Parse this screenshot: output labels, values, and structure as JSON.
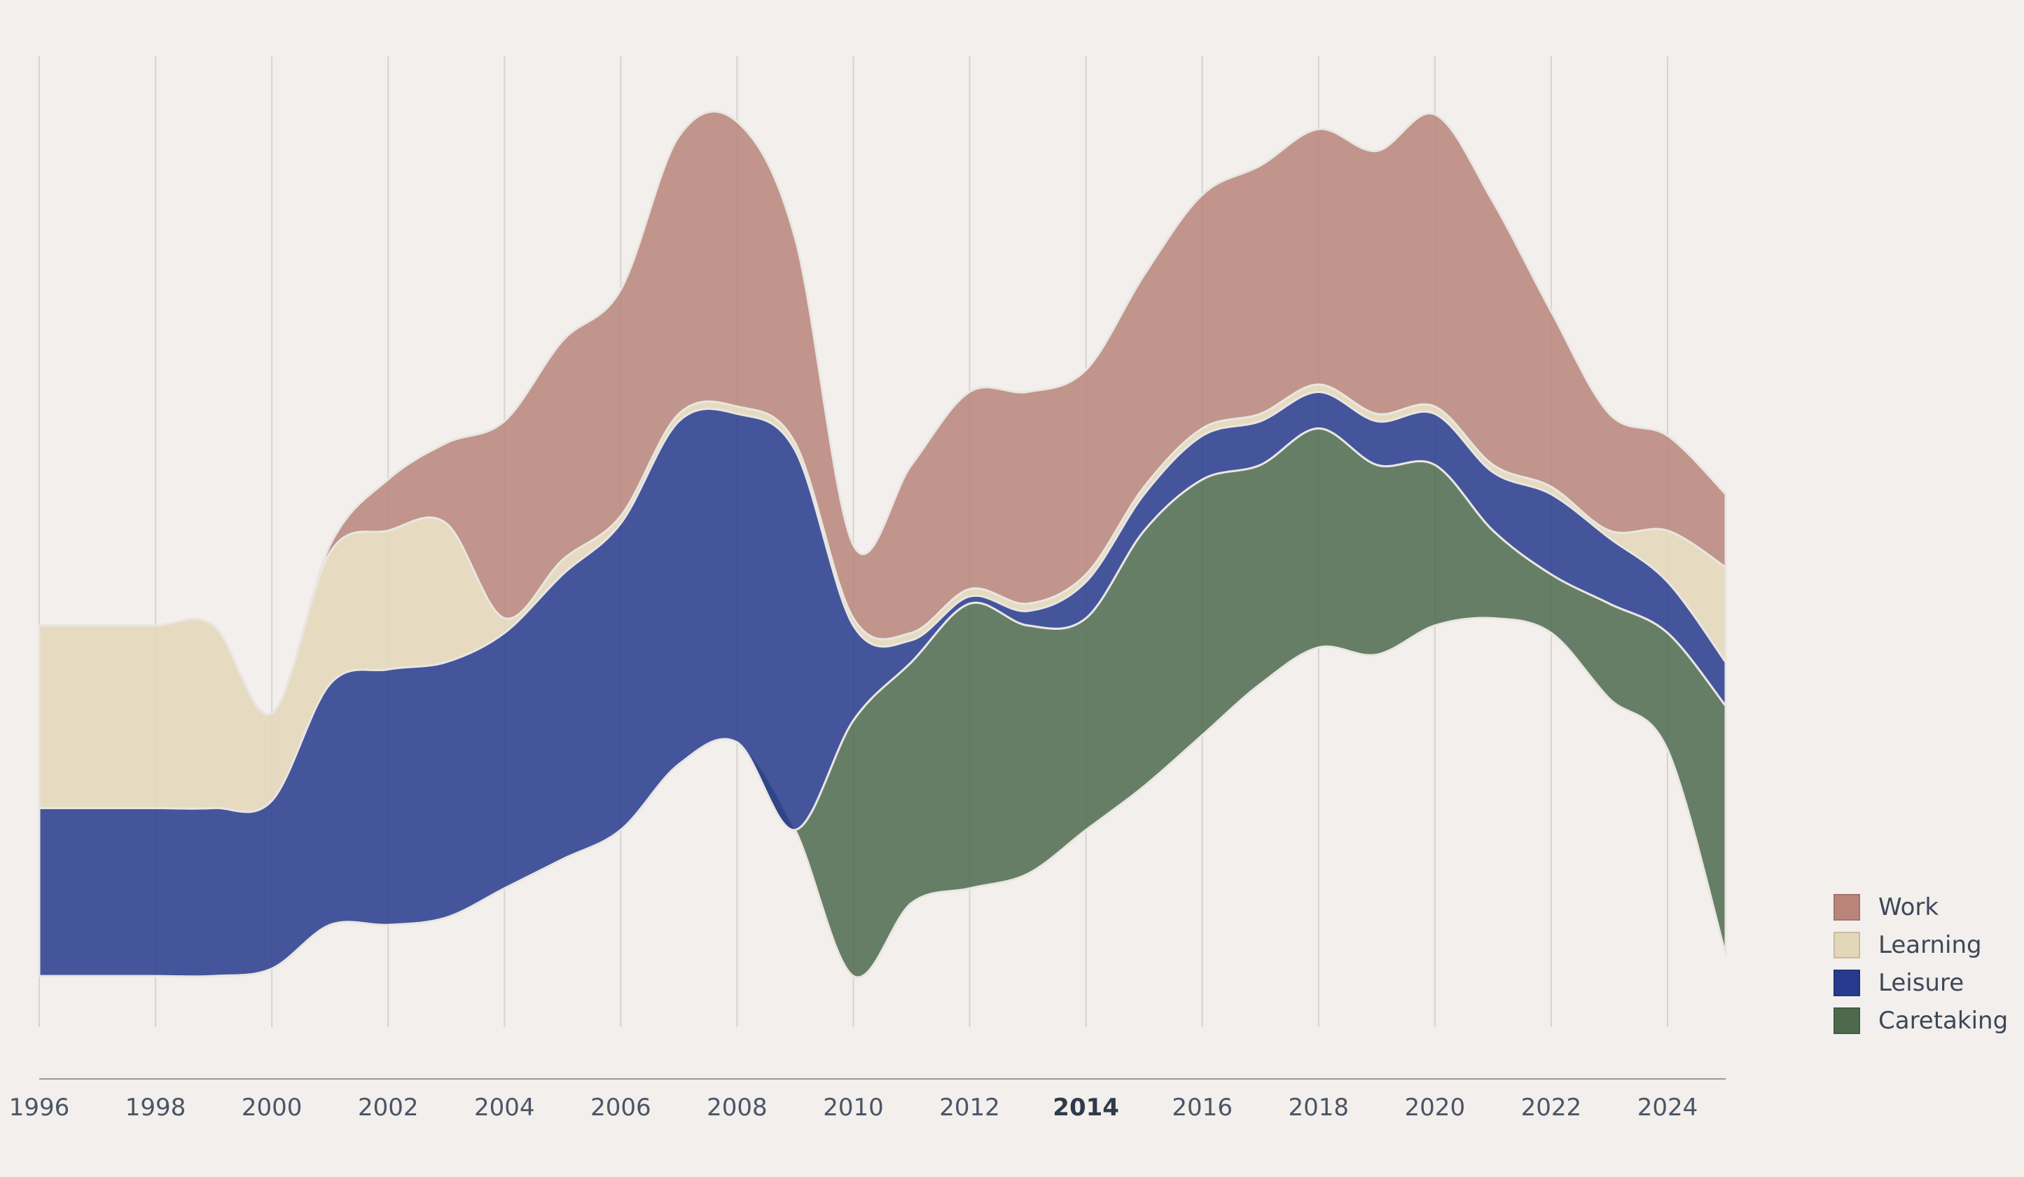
{
  "chart_data": {
    "type": "area",
    "subtype": "streamgraph",
    "title": "",
    "xlabel": "",
    "ylabel": "",
    "xlim": [
      1996,
      2025
    ],
    "x_ticks": [
      "1996",
      "1998",
      "2000",
      "2002",
      "2004",
      "2006",
      "2008",
      "2010",
      "2012",
      "2014",
      "2016",
      "2018",
      "2020",
      "2022",
      "2024"
    ],
    "highlighted_tick": "2014",
    "grid": "vertical",
    "legend_position": "right-bottom",
    "x": [
      1996,
      1997,
      1998,
      1999,
      2000,
      2001,
      2002,
      2003,
      2004,
      2005,
      2006,
      2007,
      2008,
      2009,
      2010,
      2011,
      2012,
      2013,
      2014,
      2015,
      2016,
      2017,
      2018,
      2019,
      2020,
      2021,
      2022,
      2023,
      2024,
      2025
    ],
    "baseline": [
      -2.3,
      -2.3,
      -2.3,
      -2.3,
      -2.2,
      -1.6,
      -1.6,
      -1.5,
      -1.1,
      -0.7,
      -0.3,
      0.6,
      0.9,
      -0.3,
      -2.3,
      -1.3,
      -1.1,
      -0.9,
      -0.3,
      0.3,
      1.0,
      1.7,
      2.2,
      2.1,
      2.5,
      2.6,
      2.4,
      1.5,
      0.8,
      -2.0
    ],
    "series": [
      {
        "name": "Caretaking",
        "color": "#4d6a4d",
        "values": [
          0,
          0,
          0,
          0,
          0,
          0,
          0,
          0,
          0,
          0,
          0,
          0,
          0,
          0,
          3.5,
          3.3,
          3.9,
          3.4,
          2.9,
          3.5,
          3.5,
          3.0,
          3.0,
          2.6,
          2.2,
          1.2,
          0.8,
          1.3,
          1.6,
          3.4
        ]
      },
      {
        "name": "Leisure",
        "color": "#273a8e",
        "values": [
          2.3,
          2.3,
          2.3,
          2.3,
          2.3,
          3.3,
          3.5,
          3.5,
          3.5,
          3.9,
          4.2,
          4.7,
          4.5,
          5.2,
          1.3,
          0.3,
          0.1,
          0.2,
          0.5,
          0.5,
          0.6,
          0.6,
          0.5,
          0.6,
          0.7,
          0.8,
          1.1,
          0.9,
          0.7,
          0.6
        ]
      },
      {
        "name": "Learning",
        "color": "#e4d7b9",
        "values": [
          2.5,
          2.5,
          2.5,
          2.5,
          1.2,
          1.8,
          1.9,
          1.9,
          0.2,
          0.2,
          0.1,
          0.1,
          0.1,
          0.1,
          0.1,
          0.1,
          0.1,
          0.1,
          0.1,
          0.1,
          0.1,
          0.1,
          0.1,
          0.1,
          0.1,
          0.1,
          0.1,
          0.1,
          0.7,
          1.3
        ]
      },
      {
        "name": "Work",
        "color": "#b9857a",
        "values": [
          0,
          0,
          0,
          0,
          0,
          0.1,
          0.7,
          1.1,
          2.7,
          3.0,
          3.1,
          3.8,
          3.9,
          2.8,
          1.0,
          2.3,
          2.7,
          2.9,
          2.8,
          2.9,
          3.2,
          3.4,
          3.5,
          3.6,
          4.0,
          3.6,
          2.4,
          1.6,
          1.3,
          1.0
        ]
      }
    ],
    "stack_order": [
      "Caretaking",
      "Leisure",
      "Learning",
      "Work"
    ],
    "legend_order": [
      "Work",
      "Learning",
      "Leisure",
      "Caretaking"
    ]
  },
  "legend": {
    "items": [
      {
        "label": "Work",
        "color": "#b9857a"
      },
      {
        "label": "Learning",
        "color": "#e4d7b9"
      },
      {
        "label": "Leisure",
        "color": "#273a8e"
      },
      {
        "label": "Caretaking",
        "color": "#4d6a4d"
      }
    ]
  },
  "colors": {
    "background": "#f2efec",
    "grid": "#d6d3d0",
    "axis": "#9a9a9a"
  }
}
